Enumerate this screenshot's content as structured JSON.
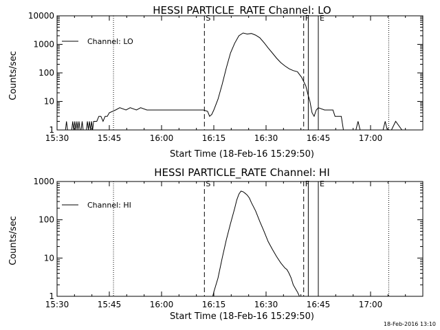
{
  "footer": {
    "timestamp": "18-Feb-2016 13:10"
  },
  "chart_data": [
    {
      "type": "line",
      "title": "HESSI PARTICLE_RATE Channel: LO",
      "xlabel": "Start Time (18-Feb-16 15:29:50)",
      "ylabel": "Counts/sec",
      "y_scale": "log",
      "xlim": [
        15.5,
        17.25
      ],
      "ylim": [
        1,
        10000
      ],
      "x_ticks": [
        "15:30",
        "15:45",
        "16:00",
        "16:15",
        "16:30",
        "16:45",
        "17:00"
      ],
      "x_tick_values": [
        15.5,
        15.75,
        16.0,
        16.25,
        16.5,
        16.75,
        17.0
      ],
      "y_ticks": [
        "1",
        "10",
        "100",
        "1000",
        "10000"
      ],
      "y_tick_values": [
        1,
        10,
        100,
        1000,
        10000
      ],
      "legend": {
        "position": "top-left",
        "entries": [
          "Channel: LO"
        ]
      },
      "series": [
        {
          "name": "Channel: LO",
          "x": [
            15.5,
            15.54,
            15.545,
            15.55,
            15.555,
            15.56,
            15.57,
            15.575,
            15.58,
            15.585,
            15.59,
            15.595,
            15.6,
            15.605,
            15.61,
            15.615,
            15.62,
            15.625,
            15.63,
            15.64,
            15.645,
            15.65,
            15.655,
            15.66,
            15.665,
            15.67,
            15.675,
            15.68,
            15.69,
            15.7,
            15.71,
            15.72,
            15.73,
            15.74,
            15.75,
            15.78,
            15.8,
            15.83,
            15.85,
            15.88,
            15.9,
            15.93,
            15.95,
            16.0,
            16.05,
            16.1,
            16.15,
            16.2,
            16.22,
            16.23,
            16.24,
            16.25,
            16.27,
            16.29,
            16.31,
            16.33,
            16.35,
            16.37,
            16.39,
            16.41,
            16.43,
            16.45,
            16.47,
            16.49,
            16.51,
            16.53,
            16.55,
            16.57,
            16.59,
            16.61,
            16.63,
            16.65,
            16.67,
            16.69,
            16.7,
            16.71,
            16.72,
            16.73,
            16.74,
            16.75,
            16.78,
            16.8,
            16.82,
            16.83,
            16.84,
            16.85,
            16.86,
            16.87,
            16.9,
            16.91,
            16.92,
            16.93,
            16.94,
            16.95,
            17.0,
            17.05,
            17.06,
            17.07,
            17.08,
            17.09,
            17.1,
            17.12,
            17.15,
            17.17,
            17.2,
            17.25
          ],
          "values": [
            1,
            1,
            2,
            1,
            1,
            1,
            1,
            2,
            1,
            2,
            1,
            2,
            1,
            2,
            1,
            1,
            2,
            1,
            1,
            1,
            2,
            1,
            2,
            1,
            2,
            1,
            2,
            2,
            2,
            3,
            3,
            2,
            3,
            3,
            4,
            5,
            6,
            5,
            6,
            5,
            6,
            5,
            5,
            5,
            5,
            5,
            5,
            5,
            4.5,
            3,
            3.5,
            5,
            12,
            40,
            150,
            500,
            1100,
            2000,
            2500,
            2300,
            2400,
            2100,
            1700,
            1150,
            750,
            500,
            330,
            230,
            175,
            140,
            120,
            110,
            70,
            35,
            18,
            10,
            4,
            3,
            5,
            6,
            5,
            5,
            5,
            3,
            3,
            3,
            3,
            1,
            1,
            1,
            1,
            1,
            2,
            1,
            1,
            1,
            1,
            2,
            1,
            1,
            1,
            2,
            1,
            1,
            1,
            1
          ]
        }
      ],
      "annotations": [
        {
          "label": "",
          "x": 15.5,
          "style": "dotted"
        },
        {
          "label": "",
          "x": 15.77,
          "style": "dotted"
        },
        {
          "label": "S",
          "x": 16.205,
          "style": "dashed"
        },
        {
          "label": "F",
          "x": 16.68,
          "style": "dashed"
        },
        {
          "label": "",
          "x": 16.702,
          "style": "solid"
        },
        {
          "label": "E",
          "x": 16.75,
          "style": "solid"
        },
        {
          "label": "",
          "x": 17.087,
          "style": "dotted"
        }
      ]
    },
    {
      "type": "line",
      "title": "HESSI PARTICLE_RATE Channel: HI",
      "xlabel": "Start Time (18-Feb-16 15:29:50)",
      "ylabel": "Counts/sec",
      "y_scale": "log",
      "xlim": [
        15.5,
        17.25
      ],
      "ylim": [
        1,
        1000
      ],
      "x_ticks": [
        "15:30",
        "15:45",
        "16:00",
        "16:15",
        "16:30",
        "16:45",
        "17:00"
      ],
      "x_tick_values": [
        15.5,
        15.75,
        16.0,
        16.25,
        16.5,
        16.75,
        17.0
      ],
      "y_ticks": [
        "1",
        "10",
        "100",
        "1000"
      ],
      "y_tick_values": [
        1,
        10,
        100,
        1000
      ],
      "legend": {
        "position": "top-left",
        "entries": [
          "Channel: HI"
        ]
      },
      "series": [
        {
          "name": "Channel: HI",
          "x": [
            16.245,
            16.25,
            16.27,
            16.29,
            16.31,
            16.33,
            16.35,
            16.36,
            16.37,
            16.38,
            16.39,
            16.4,
            16.41,
            16.42,
            16.43,
            16.45,
            16.47,
            16.49,
            16.51,
            16.53,
            16.55,
            16.57,
            16.59,
            16.6,
            16.61,
            16.62,
            16.63,
            16.64,
            16.65,
            16.66
          ],
          "values": [
            1,
            1.3,
            3,
            10,
            30,
            80,
            200,
            330,
            470,
            560,
            540,
            490,
            440,
            370,
            280,
            170,
            90,
            50,
            27,
            17,
            11,
            7.5,
            5.5,
            5,
            4,
            3,
            2,
            1.6,
            1.3,
            1
          ]
        }
      ],
      "annotations": [
        {
          "label": "",
          "x": 15.5,
          "style": "dotted"
        },
        {
          "label": "",
          "x": 15.77,
          "style": "dotted"
        },
        {
          "label": "S",
          "x": 16.205,
          "style": "dashed"
        },
        {
          "label": "F",
          "x": 16.68,
          "style": "dashed"
        },
        {
          "label": "",
          "x": 16.702,
          "style": "solid"
        },
        {
          "label": "E",
          "x": 16.75,
          "style": "solid"
        },
        {
          "label": "",
          "x": 17.087,
          "style": "dotted"
        }
      ]
    }
  ]
}
